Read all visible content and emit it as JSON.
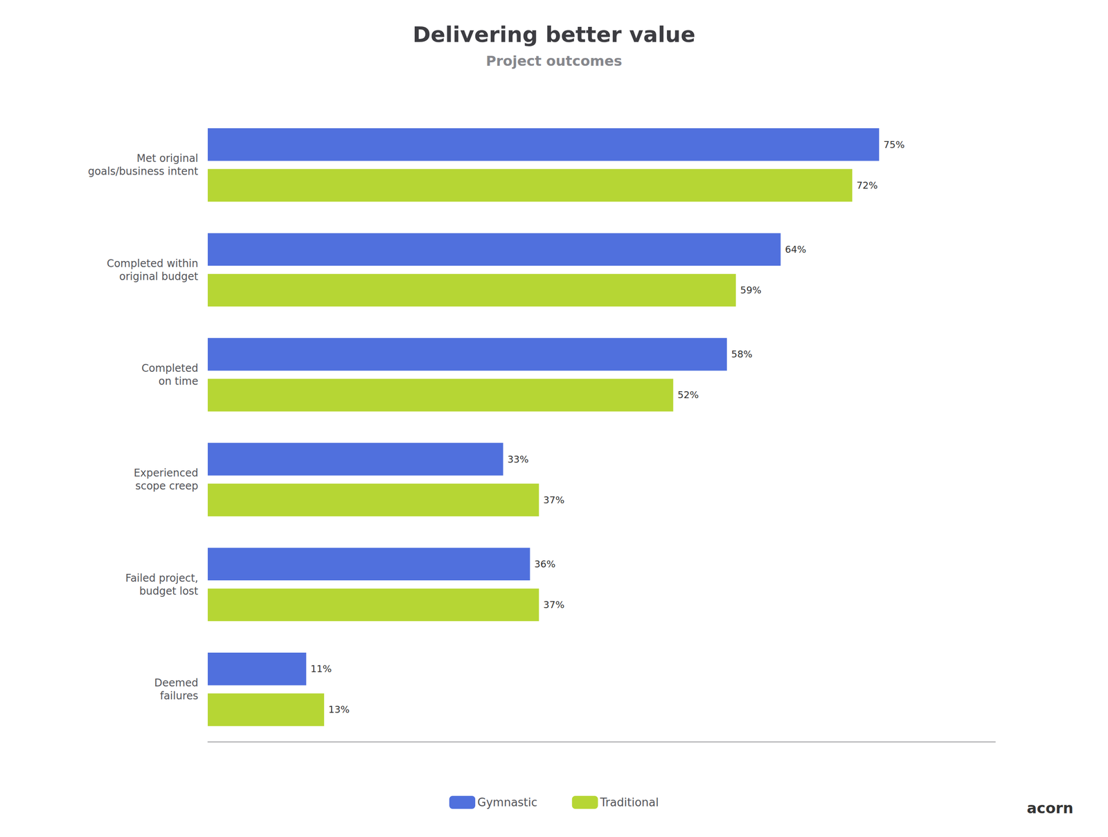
{
  "chart_data": {
    "type": "bar",
    "orientation": "horizontal",
    "title": "Delivering better value",
    "subtitle": "Project outcomes",
    "categories": [
      "Met original\ngoals/business intent",
      "Completed within\noriginal budget",
      "Completed\non time",
      "Experienced\nscope creep",
      "Failed project,\nbudget lost",
      "Deemed\nfailures"
    ],
    "series": [
      {
        "name": "Gymnastic",
        "values": [
          75,
          64,
          58,
          33,
          36,
          11
        ],
        "value_labels": [
          "75%",
          "64%",
          "58%",
          "33%",
          "36%",
          "11%"
        ]
      },
      {
        "name": "Traditional",
        "values": [
          72,
          59,
          52,
          37,
          37,
          13
        ],
        "value_labels": [
          "72%",
          "59%",
          "52%",
          "37%",
          "37%",
          "13%"
        ]
      }
    ],
    "xlim": [
      0,
      88
    ],
    "grid": false,
    "legend": "bottom",
    "data_labels": true,
    "tick_labels": "y",
    "annotations": [
      "acorn"
    ]
  }
}
